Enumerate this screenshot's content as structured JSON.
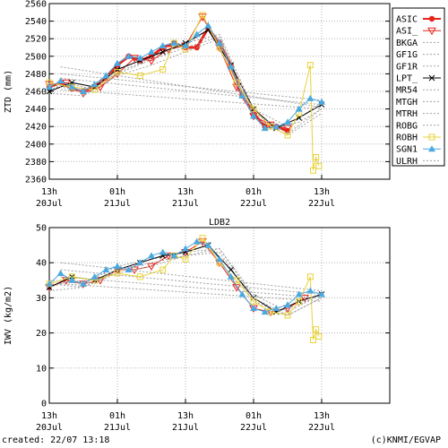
{
  "footer": {
    "created": "created: 22/07 13:18",
    "credit": "(c)KNMI/EGVAP"
  },
  "colors": {
    "ASIC": "#e8231a",
    "ASI_": "#e8231a",
    "BKGA": "#a0a0a0",
    "GF1G": "#a0a0a0",
    "GF1R": "#a0a0a0",
    "LPT_": "#000000",
    "MR54": "#a0a0a0",
    "MTGH": "#a0a0a0",
    "MTRH": "#a0a0a0",
    "ROBG": "#a0a0a0",
    "ROBH": "#e8d23a",
    "SGN1": "#4aa9e0",
    "ULRH": "#a0a0a0"
  },
  "chart_data": [
    {
      "type": "line",
      "title": "",
      "ylabel": "ZTD (mm)",
      "xlabel": "",
      "ylim": [
        2360,
        2560
      ],
      "yticks": [
        2360,
        2380,
        2400,
        2420,
        2440,
        2460,
        2480,
        2500,
        2520,
        2540,
        2560
      ],
      "xlim": [
        0,
        60
      ],
      "xticks": [
        {
          "x": 0,
          "l1": "13h",
          "l2": "20Jul"
        },
        {
          "x": 12,
          "l1": "01h",
          "l2": "21Jul"
        },
        {
          "x": 24,
          "l1": "13h",
          "l2": "21Jul"
        },
        {
          "x": 36,
          "l1": "01h",
          "l2": "22Jul"
        },
        {
          "x": 48,
          "l1": "13h",
          "l2": "22Jul"
        }
      ],
      "grid": true,
      "legend": "right",
      "legend_entries": [
        "ASIC",
        "ASI_",
        "BKGA",
        "GF1G",
        "GF1R",
        "LPT_",
        "MR54",
        "MTGH",
        "MTRH",
        "ROBG",
        "ROBH",
        "SGN1",
        "ULRH"
      ],
      "series": [
        {
          "name": "ASIC",
          "marker": "dot",
          "x": [
            0,
            2,
            4,
            6,
            8,
            10,
            12,
            14,
            16,
            18,
            20,
            22,
            24,
            26,
            28,
            30,
            32,
            34,
            36,
            38,
            40,
            42
          ],
          "values": [
            2465,
            2470,
            2463,
            2460,
            2466,
            2475,
            2490,
            2500,
            2495,
            2500,
            2510,
            2515,
            2510,
            2510,
            2532,
            2515,
            2490,
            2455,
            2435,
            2420,
            2420,
            2415
          ]
        },
        {
          "name": "ASI_",
          "marker": "triangle-down",
          "x": [
            0,
            3,
            6,
            9,
            12,
            15,
            18,
            21,
            24,
            27,
            30,
            33,
            36,
            39,
            42
          ],
          "values": [
            2468,
            2470,
            2458,
            2465,
            2480,
            2498,
            2495,
            2508,
            2512,
            2545,
            2510,
            2465,
            2432,
            2422,
            2418
          ]
        },
        {
          "name": "BKGA",
          "marker": "none",
          "x": [
            0,
            4,
            8,
            12,
            16,
            20,
            24,
            28,
            32,
            36,
            40,
            44,
            48
          ],
          "values": [
            2462,
            2468,
            2462,
            2482,
            2492,
            2505,
            2512,
            2530,
            2485,
            2430,
            2418,
            2425,
            2440
          ]
        },
        {
          "name": "GF1G",
          "marker": "none",
          "x": [
            0,
            6,
            12,
            18,
            24,
            30,
            36,
            42,
            48
          ],
          "values": [
            2470,
            2460,
            2485,
            2500,
            2515,
            2525,
            2440,
            2420,
            2448
          ]
        },
        {
          "name": "GF1R",
          "marker": "none",
          "x": [
            0,
            6,
            12,
            18,
            24,
            30,
            36,
            42,
            48
          ],
          "values": [
            2458,
            2455,
            2478,
            2490,
            2505,
            2520,
            2430,
            2410,
            2435
          ]
        },
        {
          "name": "LPT_",
          "marker": "x",
          "x": [
            0,
            4,
            8,
            12,
            16,
            20,
            24,
            28,
            32,
            36,
            40,
            44,
            48
          ],
          "values": [
            2460,
            2470,
            2465,
            2485,
            2495,
            2505,
            2515,
            2530,
            2490,
            2440,
            2418,
            2430,
            2445
          ]
        },
        {
          "name": "MR54",
          "marker": "none",
          "x": [
            2,
            48
          ],
          "values": [
            2488,
            2442
          ]
        },
        {
          "name": "MTGH",
          "marker": "none",
          "x": [
            2,
            48
          ],
          "values": [
            2475,
            2445
          ]
        },
        {
          "name": "MTRH",
          "marker": "none",
          "x": [
            2,
            48
          ],
          "values": [
            2480,
            2450
          ]
        },
        {
          "name": "ROBG",
          "marker": "none",
          "x": [
            2,
            48
          ],
          "values": [
            2462,
            2440
          ]
        },
        {
          "name": "ROBH",
          "marker": "square",
          "x": [
            0,
            4,
            8,
            12,
            16,
            20,
            22,
            24,
            27,
            30,
            33,
            36,
            39,
            42,
            44,
            46,
            46.5,
            47,
            47.5
          ],
          "values": [
            2470,
            2465,
            2462,
            2482,
            2478,
            2485,
            2515,
            2508,
            2547,
            2510,
            2470,
            2440,
            2420,
            2410,
            2435,
            2490,
            2370,
            2385,
            2375
          ]
        },
        {
          "name": "SGN1",
          "marker": "triangle-up",
          "x": [
            0,
            2,
            4,
            6,
            8,
            10,
            12,
            14,
            16,
            18,
            20,
            22,
            24,
            26,
            28,
            30,
            32,
            34,
            36,
            38,
            40,
            42,
            44,
            46,
            48
          ],
          "values": [
            2465,
            2472,
            2465,
            2460,
            2468,
            2478,
            2492,
            2500,
            2498,
            2505,
            2512,
            2515,
            2512,
            2525,
            2535,
            2515,
            2488,
            2455,
            2432,
            2418,
            2420,
            2425,
            2440,
            2452,
            2448
          ]
        },
        {
          "name": "ULRH",
          "marker": "none",
          "x": [
            0,
            6,
            12,
            18,
            24,
            30,
            36,
            42,
            48
          ],
          "values": [
            2466,
            2462,
            2480,
            2496,
            2510,
            2522,
            2436,
            2412,
            2440
          ]
        }
      ]
    },
    {
      "type": "line",
      "title": "LDB2",
      "ylabel": "IWV (kg/m2)",
      "xlabel": "",
      "ylim": [
        0,
        50
      ],
      "yticks": [
        0,
        10,
        20,
        30,
        40,
        50
      ],
      "xlim": [
        0,
        60
      ],
      "xticks": [
        {
          "x": 0,
          "l1": "13h",
          "l2": "20Jul"
        },
        {
          "x": 12,
          "l1": "01h",
          "l2": "21Jul"
        },
        {
          "x": 24,
          "l1": "13h",
          "l2": "21Jul"
        },
        {
          "x": 36,
          "l1": "01h",
          "l2": "22Jul"
        },
        {
          "x": 48,
          "l1": "13h",
          "l2": "22Jul"
        }
      ],
      "grid": true,
      "legend": "none",
      "series": [
        {
          "name": "ASIC",
          "marker": "dot",
          "x": [],
          "values": []
        },
        {
          "name": "ASI_",
          "marker": "triangle-down",
          "x": [
            0,
            3,
            6,
            9,
            12,
            15,
            18,
            21,
            24,
            27,
            30,
            33,
            36,
            39,
            42,
            45
          ],
          "values": [
            33,
            35,
            34,
            35,
            38,
            38,
            39,
            42,
            43,
            46,
            40,
            33,
            27,
            26,
            27,
            30
          ]
        },
        {
          "name": "BKGA",
          "marker": "none",
          "x": [
            0,
            4,
            8,
            12,
            16,
            20,
            24,
            28,
            32,
            36,
            40,
            44,
            48
          ],
          "values": [
            33,
            35,
            34,
            38,
            40,
            42,
            43,
            45,
            38,
            30,
            26,
            28,
            31
          ]
        },
        {
          "name": "GF1G",
          "marker": "none",
          "x": [
            0,
            6,
            12,
            18,
            24,
            30,
            36,
            42,
            48
          ],
          "values": [
            35,
            34,
            39,
            41,
            43,
            44,
            31,
            26,
            31
          ]
        },
        {
          "name": "GF1R",
          "marker": "none",
          "x": [
            0,
            6,
            12,
            18,
            24,
            30,
            36,
            42,
            48
          ],
          "values": [
            32,
            33,
            37,
            39,
            42,
            43,
            29,
            25,
            30
          ]
        },
        {
          "name": "LPT_",
          "marker": "x",
          "x": [
            0,
            4,
            8,
            12,
            16,
            20,
            24,
            28,
            32,
            36,
            40,
            44,
            48
          ],
          "values": [
            33,
            36,
            35,
            38,
            40,
            42,
            43,
            45,
            38,
            30,
            26,
            29,
            31
          ]
        },
        {
          "name": "MR54",
          "marker": "none",
          "x": [
            2,
            48
          ],
          "values": [
            40,
            32
          ]
        },
        {
          "name": "MTGH",
          "marker": "none",
          "x": [
            2,
            48
          ],
          "values": [
            38,
            31
          ]
        },
        {
          "name": "MTRH",
          "marker": "none",
          "x": [
            2,
            48
          ],
          "values": [
            36,
            30
          ]
        },
        {
          "name": "ROBG",
          "marker": "none",
          "x": [
            2,
            48
          ],
          "values": [
            34,
            29
          ]
        },
        {
          "name": "ROBH",
          "marker": "square",
          "x": [
            0,
            4,
            8,
            12,
            16,
            20,
            22,
            24,
            27,
            30,
            33,
            36,
            39,
            42,
            44,
            46,
            46.5,
            47,
            47.5
          ],
          "values": [
            34,
            36,
            35,
            37,
            36,
            38,
            42,
            41,
            47,
            40,
            35,
            29,
            26,
            25,
            29,
            36,
            18,
            21,
            19
          ]
        },
        {
          "name": "SGN1",
          "marker": "triangle-up",
          "x": [
            0,
            2,
            4,
            6,
            8,
            10,
            12,
            14,
            16,
            18,
            20,
            22,
            24,
            26,
            28,
            30,
            32,
            34,
            36,
            38,
            40,
            42,
            44,
            46,
            48
          ],
          "values": [
            34,
            37,
            35,
            34,
            36,
            38,
            39,
            38,
            40,
            42,
            43,
            42,
            44,
            46,
            45,
            41,
            36,
            31,
            27,
            26,
            27,
            28,
            31,
            32,
            31
          ]
        },
        {
          "name": "ULRH",
          "marker": "none",
          "x": [
            0,
            6,
            12,
            18,
            24,
            30,
            36,
            42,
            48
          ],
          "values": [
            34,
            33,
            38,
            40,
            42,
            44,
            30,
            25,
            30
          ]
        }
      ]
    }
  ]
}
